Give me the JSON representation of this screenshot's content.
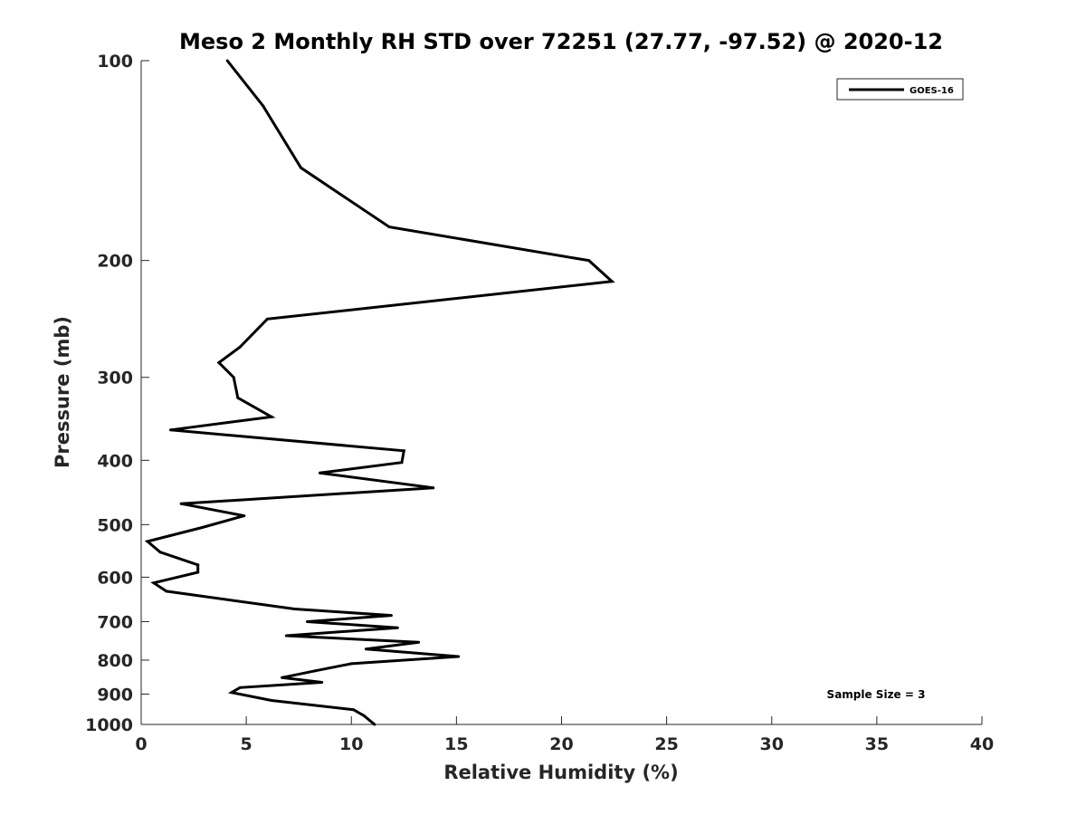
{
  "chart_data": {
    "type": "line",
    "title": "Meso 2 Monthly RH STD over 72251 (27.77, -97.52) @ 2020-12",
    "xlabel": "Relative Humidity (%)",
    "ylabel": "Pressure (mb)",
    "xlim": [
      0,
      40
    ],
    "ylim": [
      1000,
      100
    ],
    "yscale": "log",
    "x_ticks": [
      0,
      5,
      10,
      15,
      20,
      25,
      30,
      35,
      40
    ],
    "y_ticks": [
      100,
      200,
      300,
      400,
      500,
      600,
      700,
      800,
      900,
      1000
    ],
    "grid": false,
    "legend_position": "top-right",
    "series": [
      {
        "name": "GOES-16",
        "color": "#000000",
        "x": [
          4.1,
          5.8,
          7.6,
          11.8,
          21.3,
          22.4,
          6.0,
          4.7,
          3.7,
          4.4,
          4.6,
          6.2,
          1.4,
          12.5,
          12.4,
          8.5,
          13.9,
          1.9,
          4.9,
          2.9,
          0.3,
          0.9,
          2.7,
          2.7,
          0.6,
          1.2,
          7.3,
          11.9,
          7.9,
          12.2,
          6.9,
          13.2,
          10.7,
          15.1,
          10.0,
          8.3,
          6.7,
          8.6,
          4.7,
          4.3,
          6.2,
          10.1,
          10.6,
          11.1
        ],
        "y": [
          100,
          117,
          145,
          178,
          200,
          215,
          245,
          270,
          285,
          300,
          322,
          344,
          360,
          387,
          403,
          418,
          440,
          465,
          485,
          505,
          530,
          550,
          575,
          590,
          612,
          630,
          670,
          685,
          700,
          715,
          735,
          752,
          770,
          790,
          810,
          830,
          850,
          864,
          880,
          895,
          920,
          950,
          970,
          1000
        ]
      }
    ],
    "annotations": [
      "Sample Size = 3"
    ]
  }
}
